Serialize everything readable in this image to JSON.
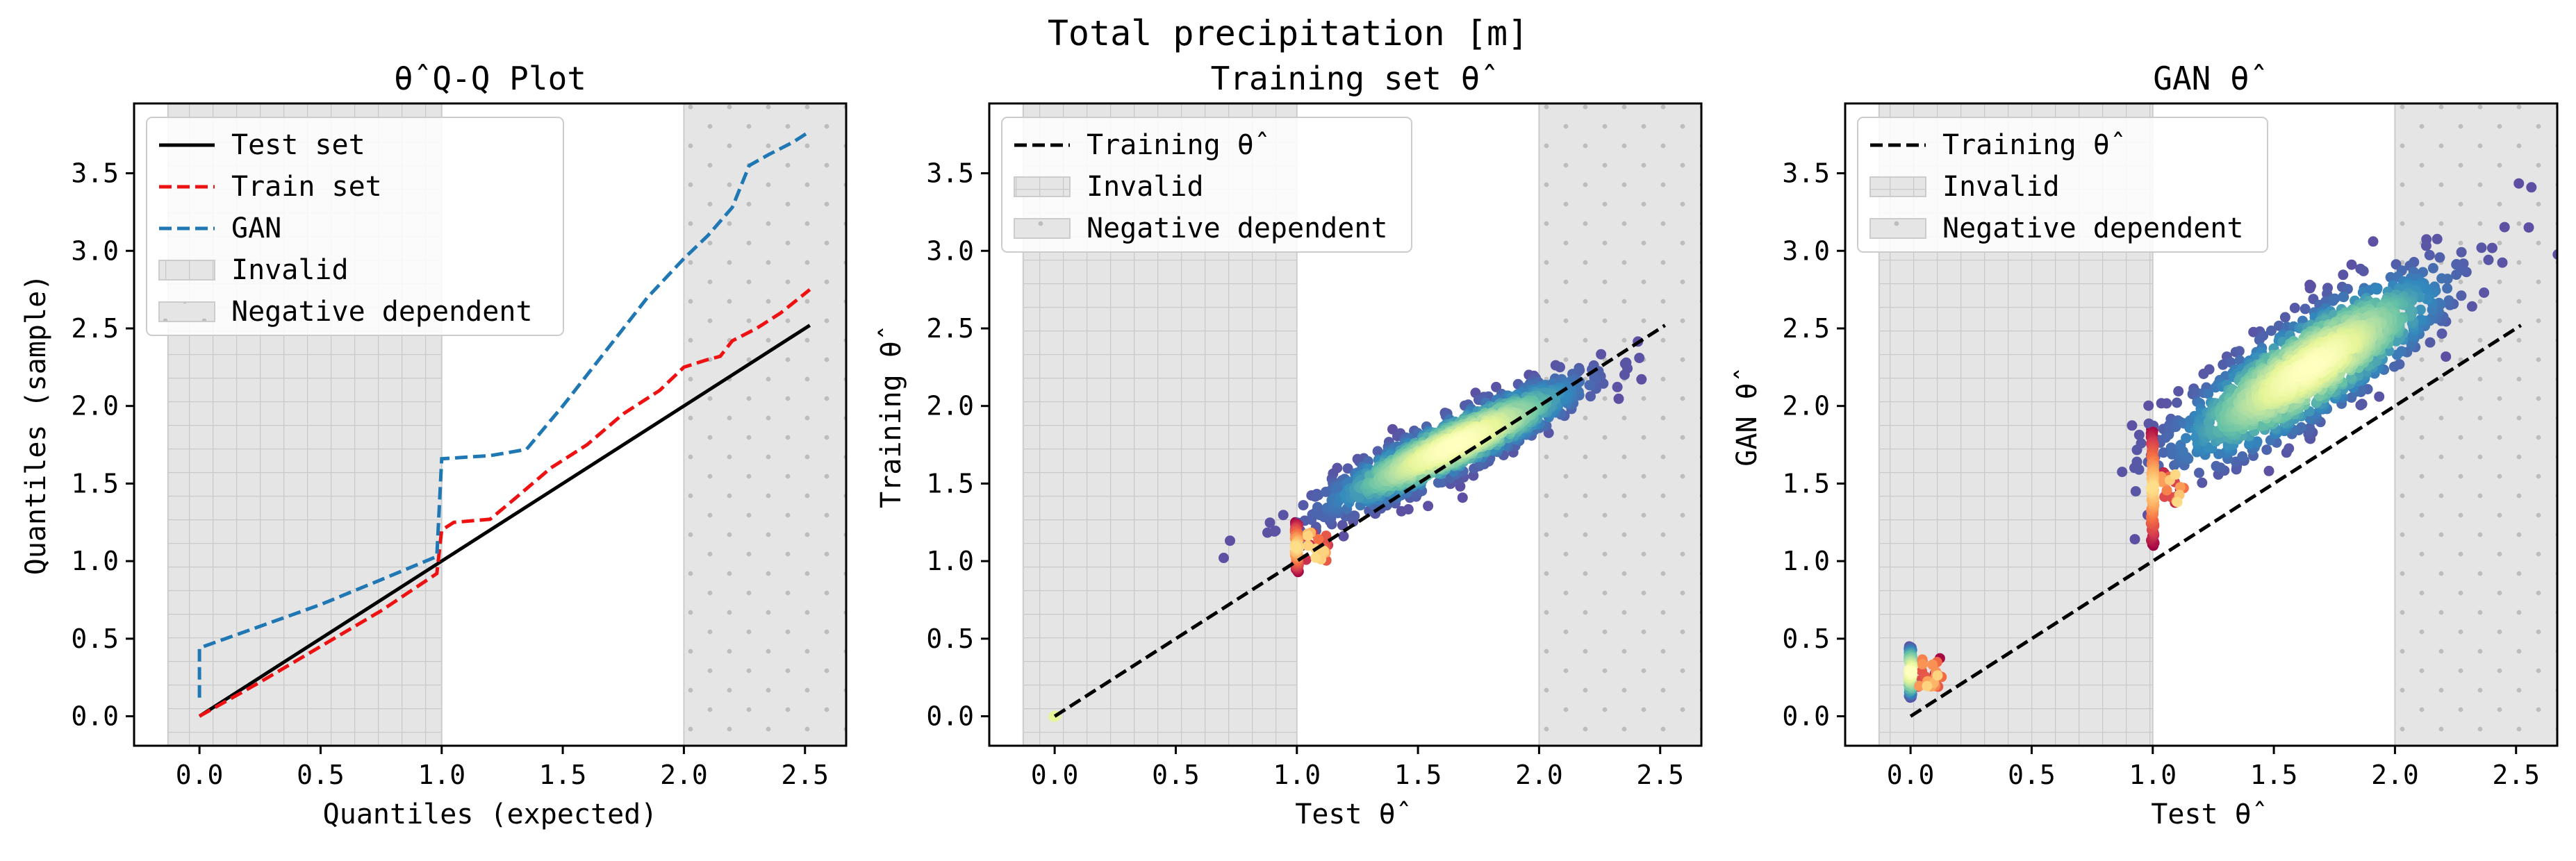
{
  "figure": {
    "suptitle": "Total precipitation [m]"
  },
  "chart_data": [
    {
      "type": "line",
      "title": "θ̂ Q-Q Plot",
      "xlabel": "Quantiles (expected)",
      "ylabel": "Quantiles (sample)",
      "xlim": [
        -0.27,
        2.67
      ],
      "ylim": [
        -0.19,
        3.95
      ],
      "xticks": [
        "0.0",
        "0.5",
        "1.0",
        "1.5",
        "2.0",
        "2.5"
      ],
      "yticks": [
        "0.0",
        "0.5",
        "1.0",
        "1.5",
        "2.0",
        "2.5",
        "3.0",
        "3.5"
      ],
      "legend_position": "upper-left",
      "regions": [
        {
          "name": "Invalid",
          "x": [
            -0.13,
            1.0
          ],
          "pattern": "grid",
          "color": "#d9d9d9"
        },
        {
          "name": "Negative dependent",
          "x": [
            2.0,
            2.67
          ],
          "pattern": "dots",
          "color": "#d9d9d9"
        }
      ],
      "series": [
        {
          "name": "Test set",
          "color": "#000000",
          "dash": "solid",
          "x": [
            0.0,
            2.52
          ],
          "y": [
            0.0,
            2.52
          ]
        },
        {
          "name": "Train set",
          "color": "#ee1111",
          "dash": "dashed",
          "x": [
            0.0,
            0.25,
            0.5,
            0.75,
            0.98,
            1.0,
            1.05,
            1.2,
            1.3,
            1.45,
            1.6,
            1.75,
            1.9,
            2.0,
            2.1,
            2.15,
            2.2,
            2.3,
            2.4,
            2.52
          ],
          "y": [
            0.0,
            0.22,
            0.45,
            0.68,
            0.92,
            1.2,
            1.25,
            1.27,
            1.4,
            1.6,
            1.75,
            1.95,
            2.1,
            2.25,
            2.3,
            2.32,
            2.42,
            2.5,
            2.6,
            2.75
          ]
        },
        {
          "name": "GAN",
          "color": "#1f77b4",
          "dash": "dashed",
          "x": [
            0.0,
            0.0,
            0.25,
            0.5,
            0.75,
            0.98,
            1.0,
            1.2,
            1.35,
            1.5,
            1.6,
            1.75,
            1.85,
            2.0,
            2.1,
            2.2,
            2.27,
            2.35,
            2.45,
            2.52
          ],
          "y": [
            0.12,
            0.44,
            0.58,
            0.72,
            0.88,
            1.03,
            1.66,
            1.68,
            1.72,
            2.0,
            2.2,
            2.5,
            2.7,
            2.95,
            3.1,
            3.28,
            3.55,
            3.62,
            3.7,
            3.77
          ]
        }
      ]
    },
    {
      "type": "scatter",
      "title": "Training set θ̂",
      "xlabel": "Test θ̂",
      "ylabel": "Training θ̂",
      "xlim": [
        -0.27,
        2.67
      ],
      "ylim": [
        -0.19,
        3.95
      ],
      "xticks": [
        "0.0",
        "0.5",
        "1.0",
        "1.5",
        "2.0",
        "2.5"
      ],
      "yticks": [
        "0.0",
        "0.5",
        "1.0",
        "1.5",
        "2.0",
        "2.5",
        "3.0",
        "3.5"
      ],
      "legend_position": "upper-left",
      "colormap": "Spectral (density-colored)",
      "regions": [
        {
          "name": "Invalid",
          "x": [
            -0.13,
            1.0
          ],
          "pattern": "grid",
          "color": "#d9d9d9"
        },
        {
          "name": "Negative dependent",
          "x": [
            2.0,
            2.67
          ],
          "pattern": "dots",
          "color": "#d9d9d9"
        }
      ],
      "reference_line": {
        "name": "Training θ̂",
        "x": [
          0.0,
          2.52
        ],
        "y": [
          0.0,
          2.52
        ],
        "color": "#000000",
        "dash": "dashed"
      },
      "clusters": [
        {
          "shape": "cloud",
          "center": [
            1.65,
            1.75
          ],
          "axis_angle_deg": 38,
          "spread_major": 0.58,
          "spread_minor": 0.12,
          "density": "high"
        },
        {
          "shape": "column",
          "x": 1.0,
          "y_range": [
            0.93,
            1.25
          ],
          "density": "medium"
        },
        {
          "shape": "point",
          "x": 0.0,
          "y": 0.0,
          "density": "low"
        }
      ]
    },
    {
      "type": "scatter",
      "title": "GAN θ̂",
      "xlabel": "Test θ̂",
      "ylabel": "GAN θ̂",
      "xlim": [
        -0.27,
        2.67
      ],
      "ylim": [
        -0.19,
        3.95
      ],
      "xticks": [
        "0.0",
        "0.5",
        "1.0",
        "1.5",
        "2.0",
        "2.5"
      ],
      "yticks": [
        "0.0",
        "0.5",
        "1.0",
        "1.5",
        "2.0",
        "2.5",
        "3.0",
        "3.5"
      ],
      "legend_position": "upper-left",
      "colormap": "Spectral (density-colored)",
      "regions": [
        {
          "name": "Invalid",
          "x": [
            -0.13,
            1.0
          ],
          "pattern": "grid",
          "color": "#d9d9d9"
        },
        {
          "name": "Negative dependent",
          "x": [
            2.0,
            2.67
          ],
          "pattern": "dots",
          "color": "#d9d9d9"
        }
      ],
      "reference_line": {
        "name": "Training θ̂",
        "x": [
          0.0,
          2.52
        ],
        "y": [
          0.0,
          2.52
        ],
        "color": "#000000",
        "dash": "dashed"
      },
      "clusters": [
        {
          "shape": "cloud",
          "center": [
            1.65,
            2.25
          ],
          "axis_angle_deg": 48,
          "spread_major": 0.7,
          "spread_minor": 0.2,
          "density": "high"
        },
        {
          "shape": "column",
          "x": 1.0,
          "y_range": [
            1.1,
            1.85
          ],
          "density": "medium"
        },
        {
          "shape": "column",
          "x": 0.0,
          "y_range": [
            0.12,
            0.45
          ],
          "density": "low"
        }
      ]
    }
  ]
}
